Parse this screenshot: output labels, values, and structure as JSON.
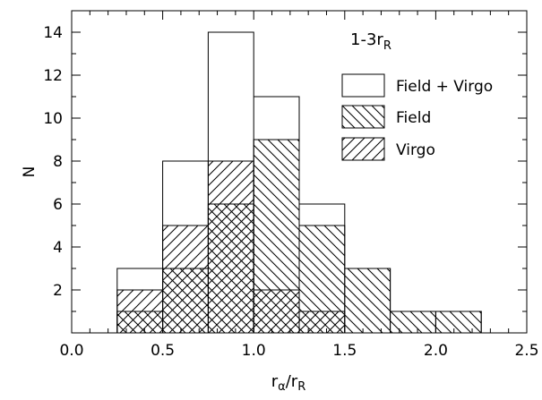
{
  "chart_data": {
    "type": "bar",
    "subtype": "histogram",
    "x_bins": [
      0.25,
      0.5,
      0.75,
      1.0,
      1.25,
      1.5,
      1.75,
      2.0,
      2.25
    ],
    "series": [
      {
        "name": "Field + Virgo",
        "pattern": "none",
        "values": [
          3,
          8,
          14,
          11,
          6,
          3,
          1,
          1
        ]
      },
      {
        "name": "Field",
        "pattern": "backslash",
        "values": [
          1,
          3,
          6,
          9,
          5,
          3,
          1,
          1
        ]
      },
      {
        "name": "Virgo",
        "pattern": "slash",
        "values": [
          2,
          5,
          8,
          2,
          1,
          0,
          0,
          0
        ]
      }
    ],
    "annotation": {
      "base": "1-3r",
      "sub": "R"
    },
    "xlabel": {
      "a": "r",
      "a_sub": "α",
      "sep": "/",
      "b": "r",
      "b_sub": "R"
    },
    "ylabel": "N",
    "xlim": [
      0.0,
      2.5
    ],
    "ylim": [
      0,
      15
    ],
    "xticks": [
      0.0,
      0.5,
      1.0,
      1.5,
      2.0,
      2.5
    ],
    "xtick_labels": [
      "0.0",
      "0.5",
      "1.0",
      "1.5",
      "2.0",
      "2.5"
    ],
    "yticks": [
      2,
      4,
      6,
      8,
      10,
      12,
      14
    ],
    "ytick_labels": [
      "2",
      "4",
      "6",
      "8",
      "10",
      "12",
      "14"
    ],
    "legend_position": "top-right",
    "grid": false
  }
}
